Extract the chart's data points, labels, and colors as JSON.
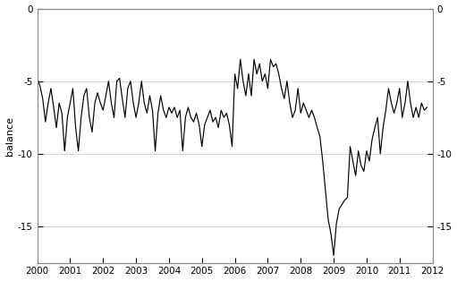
{
  "title": "",
  "ylabel": "balance",
  "xlim": [
    2000,
    2012
  ],
  "ylim": [
    -17.5,
    0
  ],
  "yticks": [
    0,
    -5,
    -10,
    -15
  ],
  "xticks": [
    2000,
    2001,
    2002,
    2003,
    2004,
    2005,
    2006,
    2007,
    2008,
    2009,
    2010,
    2011,
    2012
  ],
  "line_color": "#000000",
  "background_color": "#ffffff",
  "grid_color": "#c8c8c8",
  "data": [
    [
      2000.0,
      -4.8
    ],
    [
      2000.083,
      -5.3
    ],
    [
      2000.167,
      -6.2
    ],
    [
      2000.25,
      -7.8
    ],
    [
      2000.333,
      -6.5
    ],
    [
      2000.417,
      -5.5
    ],
    [
      2000.5,
      -6.8
    ],
    [
      2000.583,
      -8.2
    ],
    [
      2000.667,
      -6.5
    ],
    [
      2000.75,
      -7.2
    ],
    [
      2000.833,
      -9.8
    ],
    [
      2000.917,
      -7.5
    ],
    [
      2001.0,
      -6.5
    ],
    [
      2001.083,
      -5.5
    ],
    [
      2001.167,
      -8.2
    ],
    [
      2001.25,
      -9.8
    ],
    [
      2001.333,
      -7.5
    ],
    [
      2001.417,
      -6.0
    ],
    [
      2001.5,
      -5.5
    ],
    [
      2001.583,
      -7.5
    ],
    [
      2001.667,
      -8.5
    ],
    [
      2001.75,
      -6.5
    ],
    [
      2001.833,
      -5.8
    ],
    [
      2001.917,
      -6.5
    ],
    [
      2002.0,
      -7.0
    ],
    [
      2002.083,
      -6.0
    ],
    [
      2002.167,
      -5.0
    ],
    [
      2002.25,
      -6.5
    ],
    [
      2002.333,
      -7.5
    ],
    [
      2002.417,
      -5.0
    ],
    [
      2002.5,
      -4.8
    ],
    [
      2002.583,
      -6.2
    ],
    [
      2002.667,
      -7.5
    ],
    [
      2002.75,
      -5.5
    ],
    [
      2002.833,
      -5.0
    ],
    [
      2002.917,
      -6.5
    ],
    [
      2003.0,
      -7.5
    ],
    [
      2003.083,
      -6.5
    ],
    [
      2003.167,
      -5.0
    ],
    [
      2003.25,
      -6.5
    ],
    [
      2003.333,
      -7.2
    ],
    [
      2003.417,
      -6.0
    ],
    [
      2003.5,
      -7.0
    ],
    [
      2003.583,
      -9.8
    ],
    [
      2003.667,
      -7.2
    ],
    [
      2003.75,
      -6.0
    ],
    [
      2003.833,
      -7.0
    ],
    [
      2003.917,
      -7.5
    ],
    [
      2004.0,
      -6.8
    ],
    [
      2004.083,
      -7.2
    ],
    [
      2004.167,
      -6.8
    ],
    [
      2004.25,
      -7.5
    ],
    [
      2004.333,
      -7.0
    ],
    [
      2004.417,
      -9.8
    ],
    [
      2004.5,
      -7.5
    ],
    [
      2004.583,
      -6.8
    ],
    [
      2004.667,
      -7.5
    ],
    [
      2004.75,
      -7.8
    ],
    [
      2004.833,
      -7.2
    ],
    [
      2004.917,
      -8.0
    ],
    [
      2005.0,
      -9.5
    ],
    [
      2005.083,
      -8.0
    ],
    [
      2005.167,
      -7.5
    ],
    [
      2005.25,
      -7.0
    ],
    [
      2005.333,
      -7.8
    ],
    [
      2005.417,
      -7.5
    ],
    [
      2005.5,
      -8.2
    ],
    [
      2005.583,
      -7.0
    ],
    [
      2005.667,
      -7.5
    ],
    [
      2005.75,
      -7.2
    ],
    [
      2005.833,
      -8.0
    ],
    [
      2005.917,
      -9.5
    ],
    [
      2006.0,
      -4.5
    ],
    [
      2006.083,
      -5.5
    ],
    [
      2006.167,
      -3.5
    ],
    [
      2006.25,
      -5.0
    ],
    [
      2006.333,
      -6.0
    ],
    [
      2006.417,
      -4.5
    ],
    [
      2006.5,
      -6.0
    ],
    [
      2006.583,
      -3.5
    ],
    [
      2006.667,
      -4.5
    ],
    [
      2006.75,
      -3.8
    ],
    [
      2006.833,
      -5.0
    ],
    [
      2006.917,
      -4.5
    ],
    [
      2007.0,
      -5.5
    ],
    [
      2007.083,
      -3.5
    ],
    [
      2007.167,
      -4.0
    ],
    [
      2007.25,
      -3.8
    ],
    [
      2007.333,
      -4.5
    ],
    [
      2007.417,
      -5.5
    ],
    [
      2007.5,
      -6.2
    ],
    [
      2007.583,
      -5.0
    ],
    [
      2007.667,
      -6.5
    ],
    [
      2007.75,
      -7.5
    ],
    [
      2007.833,
      -7.0
    ],
    [
      2007.917,
      -5.5
    ],
    [
      2008.0,
      -7.2
    ],
    [
      2008.083,
      -6.5
    ],
    [
      2008.167,
      -7.0
    ],
    [
      2008.25,
      -7.5
    ],
    [
      2008.333,
      -7.0
    ],
    [
      2008.417,
      -7.5
    ],
    [
      2008.5,
      -8.2
    ],
    [
      2008.583,
      -8.8
    ],
    [
      2008.667,
      -10.5
    ],
    [
      2008.75,
      -12.5
    ],
    [
      2008.833,
      -14.5
    ],
    [
      2008.917,
      -15.5
    ],
    [
      2009.0,
      -17.0
    ],
    [
      2009.083,
      -14.8
    ],
    [
      2009.167,
      -13.8
    ],
    [
      2009.25,
      -13.5
    ],
    [
      2009.333,
      -13.2
    ],
    [
      2009.417,
      -13.0
    ],
    [
      2009.5,
      -9.5
    ],
    [
      2009.583,
      -10.5
    ],
    [
      2009.667,
      -11.5
    ],
    [
      2009.75,
      -9.8
    ],
    [
      2009.833,
      -10.8
    ],
    [
      2009.917,
      -11.2
    ],
    [
      2010.0,
      -9.8
    ],
    [
      2010.083,
      -10.5
    ],
    [
      2010.167,
      -9.0
    ],
    [
      2010.25,
      -8.2
    ],
    [
      2010.333,
      -7.5
    ],
    [
      2010.417,
      -10.0
    ],
    [
      2010.5,
      -8.2
    ],
    [
      2010.583,
      -7.0
    ],
    [
      2010.667,
      -5.5
    ],
    [
      2010.75,
      -6.5
    ],
    [
      2010.833,
      -7.2
    ],
    [
      2010.917,
      -6.5
    ],
    [
      2011.0,
      -5.5
    ],
    [
      2011.083,
      -7.5
    ],
    [
      2011.167,
      -6.5
    ],
    [
      2011.25,
      -5.0
    ],
    [
      2011.333,
      -6.5
    ],
    [
      2011.417,
      -7.5
    ],
    [
      2011.5,
      -6.8
    ],
    [
      2011.583,
      -7.5
    ],
    [
      2011.667,
      -6.5
    ],
    [
      2011.75,
      -7.0
    ],
    [
      2011.833,
      -6.8
    ]
  ]
}
